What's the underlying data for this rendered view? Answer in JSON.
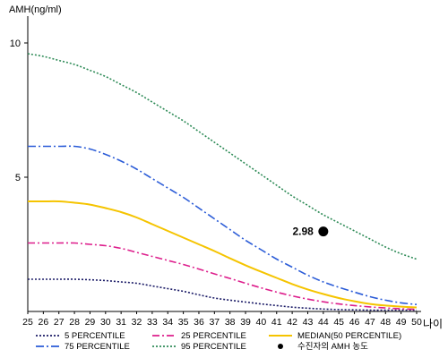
{
  "chart_data": {
    "type": "line",
    "title": "",
    "ylabel": "AMH(ng/ml)",
    "xlabel": "나이",
    "xlim": [
      25,
      50
    ],
    "ylim": [
      0,
      11
    ],
    "x_ticks": [
      25,
      26,
      27,
      28,
      29,
      30,
      31,
      32,
      33,
      34,
      35,
      36,
      37,
      38,
      39,
      40,
      41,
      42,
      43,
      44,
      45,
      46,
      47,
      48,
      49,
      50
    ],
    "y_ticks": [
      5,
      10
    ],
    "series": [
      {
        "name": "5 PERCENTILE",
        "color": "#1a1a66",
        "dash": "2,2",
        "x": [
          25,
          26,
          27,
          28,
          29,
          30,
          31,
          32,
          33,
          34,
          35,
          36,
          37,
          38,
          39,
          40,
          41,
          42,
          43,
          44,
          45,
          46,
          47,
          48,
          49,
          50
        ],
        "y": [
          1.2,
          1.2,
          1.2,
          1.2,
          1.18,
          1.15,
          1.1,
          1.05,
          0.95,
          0.85,
          0.75,
          0.62,
          0.5,
          0.42,
          0.35,
          0.28,
          0.22,
          0.16,
          0.12,
          0.09,
          0.07,
          0.06,
          0.05,
          0.05,
          0.05,
          0.05
        ]
      },
      {
        "name": "25 PERCENTILE",
        "color": "#dd1e8c",
        "dash": "8,3,2,3",
        "x": [
          25,
          26,
          27,
          28,
          29,
          30,
          31,
          32,
          33,
          34,
          35,
          36,
          37,
          38,
          39,
          40,
          41,
          42,
          43,
          44,
          45,
          46,
          47,
          48,
          49,
          50
        ],
        "y": [
          2.55,
          2.55,
          2.55,
          2.55,
          2.5,
          2.45,
          2.35,
          2.2,
          2.05,
          1.9,
          1.75,
          1.58,
          1.4,
          1.23,
          1.05,
          0.88,
          0.72,
          0.58,
          0.46,
          0.36,
          0.28,
          0.22,
          0.17,
          0.13,
          0.1,
          0.08
        ]
      },
      {
        "name": "75 PERCENTILE",
        "color": "#2a5bd7",
        "dash": "9,3,2,3",
        "x": [
          25,
          26,
          27,
          28,
          29,
          30,
          31,
          32,
          33,
          34,
          35,
          36,
          37,
          38,
          39,
          40,
          41,
          42,
          43,
          44,
          45,
          46,
          47,
          48,
          49,
          50
        ],
        "y": [
          6.15,
          6.15,
          6.15,
          6.15,
          6.05,
          5.85,
          5.6,
          5.3,
          4.95,
          4.6,
          4.25,
          3.85,
          3.45,
          3.05,
          2.65,
          2.3,
          1.95,
          1.65,
          1.35,
          1.1,
          0.9,
          0.72,
          0.55,
          0.42,
          0.32,
          0.26
        ]
      },
      {
        "name": "95 PERCENTILE",
        "color": "#2e8b57",
        "dash": "2,2",
        "x": [
          25,
          26,
          27,
          28,
          29,
          30,
          31,
          32,
          33,
          34,
          35,
          36,
          37,
          38,
          39,
          40,
          41,
          42,
          43,
          44,
          45,
          46,
          47,
          48,
          49,
          50
        ],
        "y": [
          9.6,
          9.5,
          9.35,
          9.2,
          8.98,
          8.75,
          8.45,
          8.15,
          7.8,
          7.45,
          7.1,
          6.7,
          6.3,
          5.9,
          5.5,
          5.1,
          4.7,
          4.3,
          3.95,
          3.6,
          3.3,
          3.0,
          2.7,
          2.4,
          2.15,
          1.95
        ]
      },
      {
        "name": "MEDIAN(50 PERCENTILE)",
        "color": "#f5c400",
        "dash": "",
        "x": [
          25,
          26,
          27,
          28,
          29,
          30,
          31,
          32,
          33,
          34,
          35,
          36,
          37,
          38,
          39,
          40,
          41,
          42,
          43,
          44,
          45,
          46,
          47,
          48,
          49,
          50
        ],
        "y": [
          4.1,
          4.1,
          4.1,
          4.05,
          3.98,
          3.85,
          3.7,
          3.5,
          3.25,
          3.0,
          2.75,
          2.5,
          2.25,
          1.98,
          1.72,
          1.48,
          1.25,
          1.02,
          0.82,
          0.65,
          0.5,
          0.38,
          0.28,
          0.22,
          0.18,
          0.15
        ]
      }
    ],
    "point": {
      "name": "수진자의 AMH 농도",
      "x": 44,
      "y": 2.98,
      "label": "2.98"
    },
    "legend": {
      "placement": "bottom",
      "items": [
        "5 PERCENTILE",
        "25 PERCENTILE",
        "MEDIAN(50 PERCENTILE)",
        "75 PERCENTILE",
        "95 PERCENTILE",
        "수진자의 AMH 농도"
      ]
    },
    "grid": false
  }
}
